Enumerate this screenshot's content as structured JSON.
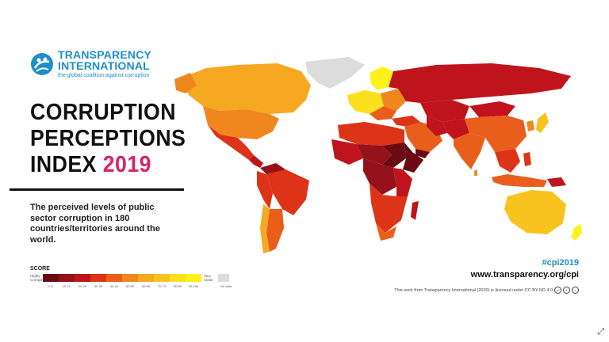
{
  "brand": {
    "line1": "TRANSPARENCY",
    "line2": "INTERNATIONAL",
    "tagline": "the global coalition against corruption",
    "color": "#1f8fc8"
  },
  "title": {
    "line1": "CORRUPTION",
    "line2": "PERCEPTIONS",
    "line3": "INDEX",
    "year": "2019",
    "year_color": "#d6246b"
  },
  "description": "The perceived levels of public sector corruption in 180 countries/territories around the world.",
  "legend": {
    "title": "SCORE",
    "low_end": "Highly Corrupt",
    "high_end": "Very Clean",
    "bins": [
      {
        "label": "0-9",
        "color": "#6b0a12"
      },
      {
        "label": "10-19",
        "color": "#95121a"
      },
      {
        "label": "20-29",
        "color": "#c0141c"
      },
      {
        "label": "30-39",
        "color": "#dd3319"
      },
      {
        "label": "40-49",
        "color": "#ea5e1c"
      },
      {
        "label": "50-59",
        "color": "#f0861e"
      },
      {
        "label": "60-69",
        "color": "#f6a820"
      },
      {
        "label": "70-79",
        "color": "#f9c31f"
      },
      {
        "label": "80-89",
        "color": "#fcdf1d"
      },
      {
        "label": "90-100",
        "color": "#fff21a"
      }
    ],
    "no_data_label": "No data",
    "no_data_color": "#dcdcdc"
  },
  "hashtag": "#cpi2019",
  "url": "www.transparency.org/cpi",
  "license": "This work from Transparency International (2020) is licensed under CC BY-ND 4.0"
}
